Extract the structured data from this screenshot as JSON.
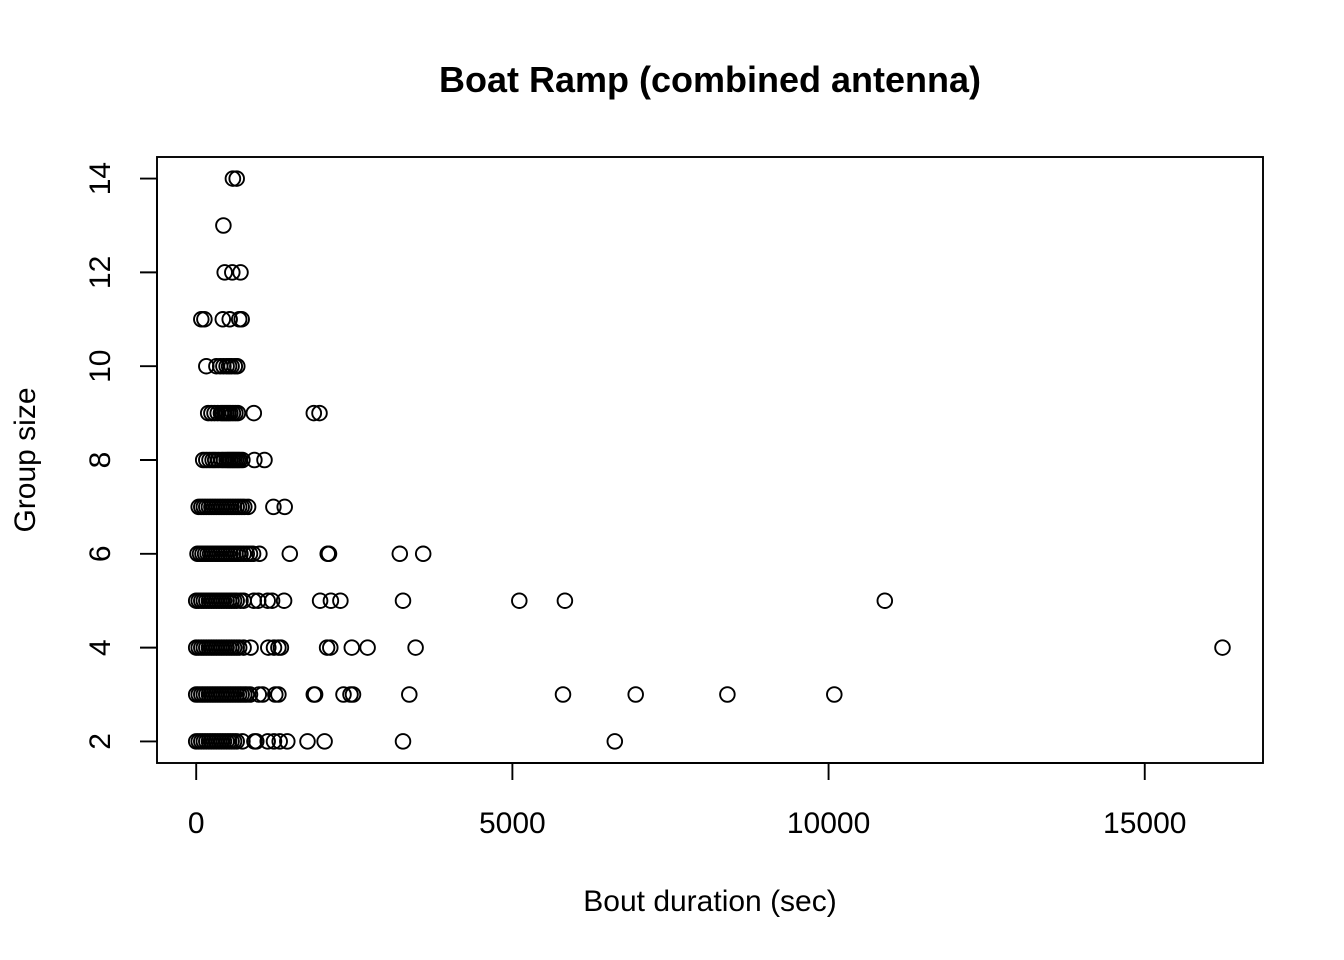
{
  "chart_data": {
    "type": "scatter",
    "title": "Boat Ramp (combined antenna)",
    "xlabel": "Bout duration (sec)",
    "ylabel": "Group size",
    "xlim": [
      -620,
      16870
    ],
    "ylim": [
      1.54,
      14.46
    ],
    "xticks": [
      0,
      5000,
      10000,
      15000
    ],
    "yticks": [
      2,
      4,
      6,
      8,
      10,
      12,
      14
    ],
    "grid": false,
    "legend": "none",
    "marker": "open-circle",
    "points": [
      [
        580,
        14
      ],
      [
        640,
        14
      ],
      [
        430,
        13
      ],
      [
        450,
        12
      ],
      [
        570,
        12
      ],
      [
        700,
        12
      ],
      [
        80,
        11
      ],
      [
        130,
        11
      ],
      [
        420,
        11
      ],
      [
        530,
        11
      ],
      [
        680,
        11
      ],
      [
        720,
        11
      ],
      [
        160,
        10
      ],
      [
        320,
        10
      ],
      [
        380,
        10
      ],
      [
        430,
        10
      ],
      [
        480,
        10
      ],
      [
        520,
        10
      ],
      [
        560,
        10
      ],
      [
        610,
        10
      ],
      [
        650,
        10
      ],
      [
        190,
        9
      ],
      [
        240,
        9
      ],
      [
        290,
        9
      ],
      [
        340,
        9
      ],
      [
        390,
        9
      ],
      [
        420,
        9
      ],
      [
        450,
        9
      ],
      [
        480,
        9
      ],
      [
        510,
        9
      ],
      [
        540,
        9
      ],
      [
        580,
        9
      ],
      [
        620,
        9
      ],
      [
        660,
        9
      ],
      [
        910,
        9
      ],
      [
        1860,
        9
      ],
      [
        1950,
        9
      ],
      [
        110,
        8
      ],
      [
        160,
        8
      ],
      [
        210,
        8
      ],
      [
        260,
        8
      ],
      [
        300,
        8
      ],
      [
        350,
        8
      ],
      [
        400,
        8
      ],
      [
        440,
        8
      ],
      [
        480,
        8
      ],
      [
        510,
        8
      ],
      [
        540,
        8
      ],
      [
        570,
        8
      ],
      [
        600,
        8
      ],
      [
        630,
        8
      ],
      [
        660,
        8
      ],
      [
        690,
        8
      ],
      [
        730,
        8
      ],
      [
        920,
        8
      ],
      [
        1080,
        8
      ],
      [
        40,
        7
      ],
      [
        80,
        7
      ],
      [
        120,
        7
      ],
      [
        160,
        7
      ],
      [
        200,
        7
      ],
      [
        240,
        7
      ],
      [
        280,
        7
      ],
      [
        320,
        7
      ],
      [
        360,
        7
      ],
      [
        400,
        7
      ],
      [
        440,
        7
      ],
      [
        480,
        7
      ],
      [
        520,
        7
      ],
      [
        560,
        7
      ],
      [
        600,
        7
      ],
      [
        640,
        7
      ],
      [
        680,
        7
      ],
      [
        720,
        7
      ],
      [
        760,
        7
      ],
      [
        820,
        7
      ],
      [
        1220,
        7
      ],
      [
        1400,
        7
      ],
      [
        20,
        6
      ],
      [
        60,
        6
      ],
      [
        100,
        6
      ],
      [
        140,
        6
      ],
      [
        180,
        6
      ],
      [
        220,
        6
      ],
      [
        260,
        6
      ],
      [
        300,
        6
      ],
      [
        340,
        6
      ],
      [
        380,
        6
      ],
      [
        420,
        6
      ],
      [
        460,
        6
      ],
      [
        500,
        6
      ],
      [
        540,
        6
      ],
      [
        580,
        6
      ],
      [
        620,
        6
      ],
      [
        660,
        6
      ],
      [
        700,
        6
      ],
      [
        750,
        6
      ],
      [
        800,
        6
      ],
      [
        850,
        6
      ],
      [
        900,
        6
      ],
      [
        1000,
        6
      ],
      [
        1480,
        6
      ],
      [
        2080,
        6
      ],
      [
        2100,
        6
      ],
      [
        3220,
        6
      ],
      [
        3590,
        6
      ],
      [
        0,
        5
      ],
      [
        40,
        5
      ],
      [
        80,
        5
      ],
      [
        120,
        5
      ],
      [
        160,
        5
      ],
      [
        200,
        5
      ],
      [
        240,
        5
      ],
      [
        280,
        5
      ],
      [
        320,
        5
      ],
      [
        360,
        5
      ],
      [
        400,
        5
      ],
      [
        440,
        5
      ],
      [
        480,
        5
      ],
      [
        520,
        5
      ],
      [
        560,
        5
      ],
      [
        600,
        5
      ],
      [
        640,
        5
      ],
      [
        700,
        5
      ],
      [
        750,
        5
      ],
      [
        910,
        5
      ],
      [
        980,
        5
      ],
      [
        1130,
        5
      ],
      [
        1200,
        5
      ],
      [
        1390,
        5
      ],
      [
        1960,
        5
      ],
      [
        2130,
        5
      ],
      [
        2280,
        5
      ],
      [
        3270,
        5
      ],
      [
        5110,
        5
      ],
      [
        5830,
        5
      ],
      [
        10890,
        5
      ],
      [
        0,
        4
      ],
      [
        40,
        4
      ],
      [
        80,
        4
      ],
      [
        120,
        4
      ],
      [
        160,
        4
      ],
      [
        200,
        4
      ],
      [
        240,
        4
      ],
      [
        280,
        4
      ],
      [
        320,
        4
      ],
      [
        360,
        4
      ],
      [
        400,
        4
      ],
      [
        440,
        4
      ],
      [
        480,
        4
      ],
      [
        520,
        4
      ],
      [
        560,
        4
      ],
      [
        600,
        4
      ],
      [
        640,
        4
      ],
      [
        680,
        4
      ],
      [
        750,
        4
      ],
      [
        860,
        4
      ],
      [
        1140,
        4
      ],
      [
        1230,
        4
      ],
      [
        1300,
        4
      ],
      [
        1340,
        4
      ],
      [
        2070,
        4
      ],
      [
        2120,
        4
      ],
      [
        2460,
        4
      ],
      [
        2710,
        4
      ],
      [
        3470,
        4
      ],
      [
        16230,
        4
      ],
      [
        0,
        3
      ],
      [
        40,
        3
      ],
      [
        80,
        3
      ],
      [
        120,
        3
      ],
      [
        160,
        3
      ],
      [
        200,
        3
      ],
      [
        240,
        3
      ],
      [
        280,
        3
      ],
      [
        320,
        3
      ],
      [
        360,
        3
      ],
      [
        400,
        3
      ],
      [
        440,
        3
      ],
      [
        480,
        3
      ],
      [
        520,
        3
      ],
      [
        560,
        3
      ],
      [
        600,
        3
      ],
      [
        640,
        3
      ],
      [
        680,
        3
      ],
      [
        720,
        3
      ],
      [
        760,
        3
      ],
      [
        800,
        3
      ],
      [
        850,
        3
      ],
      [
        990,
        3
      ],
      [
        1050,
        3
      ],
      [
        1250,
        3
      ],
      [
        1300,
        3
      ],
      [
        1860,
        3
      ],
      [
        1880,
        3
      ],
      [
        2330,
        3
      ],
      [
        2440,
        3
      ],
      [
        2480,
        3
      ],
      [
        3370,
        3
      ],
      [
        5800,
        3
      ],
      [
        6950,
        3
      ],
      [
        8400,
        3
      ],
      [
        10090,
        3
      ],
      [
        0,
        2
      ],
      [
        40,
        2
      ],
      [
        80,
        2
      ],
      [
        120,
        2
      ],
      [
        160,
        2
      ],
      [
        200,
        2
      ],
      [
        240,
        2
      ],
      [
        280,
        2
      ],
      [
        320,
        2
      ],
      [
        360,
        2
      ],
      [
        400,
        2
      ],
      [
        440,
        2
      ],
      [
        480,
        2
      ],
      [
        520,
        2
      ],
      [
        560,
        2
      ],
      [
        600,
        2
      ],
      [
        640,
        2
      ],
      [
        730,
        2
      ],
      [
        920,
        2
      ],
      [
        950,
        2
      ],
      [
        1130,
        2
      ],
      [
        1230,
        2
      ],
      [
        1320,
        2
      ],
      [
        1440,
        2
      ],
      [
        1760,
        2
      ],
      [
        2030,
        2
      ],
      [
        3270,
        2
      ],
      [
        6620,
        2
      ]
    ]
  }
}
